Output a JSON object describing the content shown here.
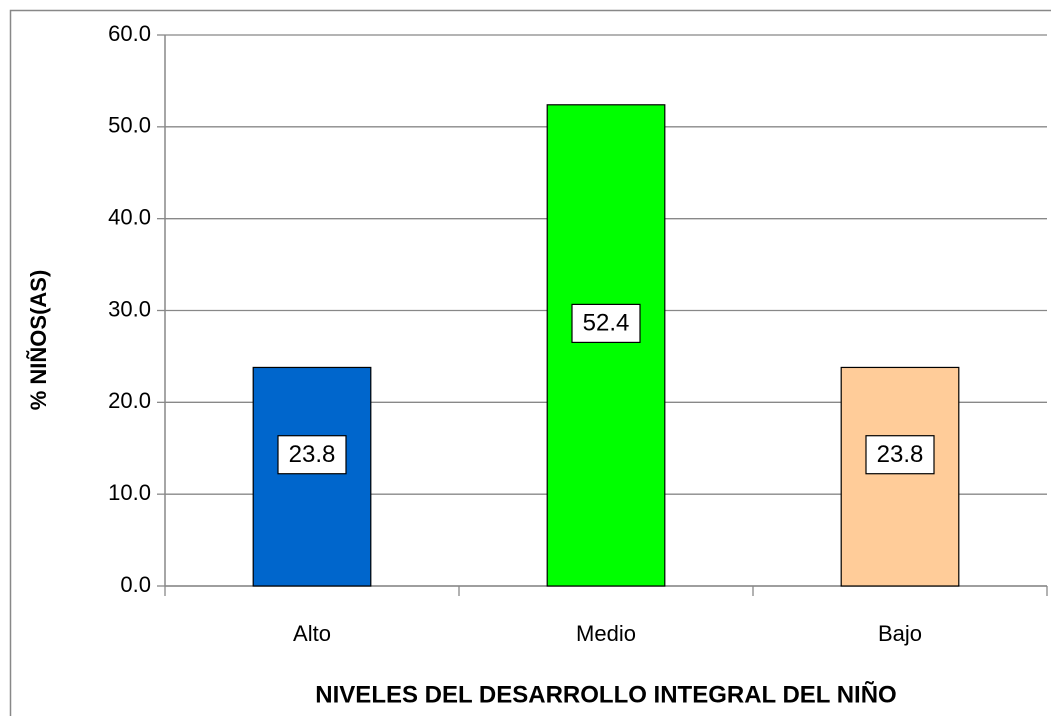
{
  "chart_data": {
    "type": "bar",
    "xlabel": "NIVELES DEL DESARROLLO INTEGRAL DEL NIÑO",
    "ylabel": "% NIÑOS(AS)",
    "categories": [
      "Alto",
      "Medio",
      "Bajo"
    ],
    "values": [
      23.8,
      52.4,
      23.8
    ],
    "colors": [
      "#0066cc",
      "#00ff00",
      "#ffcc99"
    ],
    "ylim": [
      0,
      60
    ],
    "yticks": [
      {
        "value": 0,
        "label": "0.0"
      },
      {
        "value": 10,
        "label": "10.0"
      },
      {
        "value": 20,
        "label": "20.0"
      },
      {
        "value": 30,
        "label": "30.0"
      },
      {
        "value": 40,
        "label": "40.0"
      },
      {
        "value": 50,
        "label": "50.0"
      },
      {
        "value": 60,
        "label": "60.0"
      }
    ],
    "grid": true
  }
}
